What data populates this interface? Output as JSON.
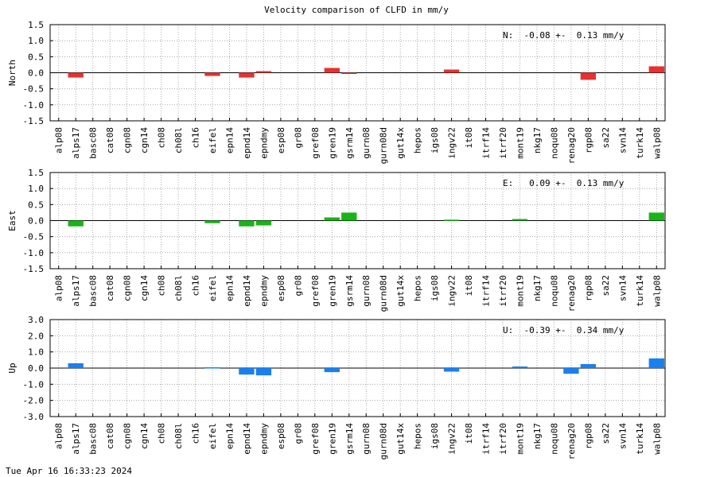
{
  "title": "Velocity comparison of CLFD in mm/y",
  "footer": "Tue Apr 16 16:33:23 2024",
  "chart_data": [
    {
      "type": "bar",
      "ylabel": "North",
      "annotation": "N:  -0.08 +-  0.13 mm/y",
      "color": "#e83030",
      "ylim": [
        -1.5,
        1.5
      ],
      "yticks": [
        1.5,
        1.0,
        0.5,
        0.0,
        -0.5,
        -1.0,
        -1.5
      ],
      "ytick_labels": [
        "1.5",
        "1.0",
        "0.5",
        "0.0",
        "-0.5",
        "-1.0",
        "-1.5"
      ],
      "grid": true,
      "categories": [
        "alp08",
        "alps17",
        "basc08",
        "cat08",
        "cgn08",
        "cgn14",
        "ch08",
        "ch08l",
        "ch16",
        "eifel",
        "epn14",
        "epnd14",
        "epndmy",
        "esp08",
        "gr08",
        "gref08",
        "gren19",
        "gsrm14",
        "gurn08",
        "gurn08d",
        "gut14x",
        "hepos",
        "igs08",
        "ingv22",
        "it08",
        "itrf14",
        "itrf20",
        "mont19",
        "nkg17",
        "noqu08",
        "renag20",
        "rgp08",
        "sa22",
        "svn14",
        "turk14",
        "walp08"
      ],
      "values": [
        0,
        -0.15,
        0,
        0,
        0,
        0,
        0,
        0,
        0,
        -0.1,
        0,
        -0.15,
        0.05,
        0,
        0,
        0,
        0.15,
        -0.03,
        0,
        0,
        0,
        0,
        0,
        0.1,
        0,
        0,
        0,
        0,
        0,
        0,
        0,
        -0.22,
        0,
        0,
        0,
        0.2
      ]
    },
    {
      "type": "bar",
      "ylabel": "East",
      "annotation": "E:   0.09 +-  0.13 mm/y",
      "color": "#18b418",
      "ylim": [
        -1.5,
        1.5
      ],
      "yticks": [
        1.5,
        1.0,
        0.5,
        0.0,
        -0.5,
        -1.0,
        -1.5
      ],
      "ytick_labels": [
        "1.5",
        "1.0",
        "0.5",
        "0.0",
        "-0.5",
        "-1.0",
        "-1.5"
      ],
      "grid": true,
      "categories": [
        "alp08",
        "alps17",
        "basc08",
        "cat08",
        "cgn08",
        "cgn14",
        "ch08",
        "ch08l",
        "ch16",
        "eifel",
        "epn14",
        "epnd14",
        "epndmy",
        "esp08",
        "gr08",
        "gref08",
        "gren19",
        "gsrm14",
        "gurn08",
        "gurn08d",
        "gut14x",
        "hepos",
        "igs08",
        "ingv22",
        "it08",
        "itrf14",
        "itrf20",
        "mont19",
        "nkg17",
        "noqu08",
        "renag20",
        "rgp08",
        "sa22",
        "svn14",
        "turk14",
        "walp08"
      ],
      "values": [
        0,
        -0.18,
        0,
        0,
        0,
        0,
        0,
        0,
        0,
        -0.08,
        0,
        -0.18,
        -0.15,
        0,
        0,
        0,
        0.1,
        0.25,
        0,
        0,
        0,
        0,
        0,
        0.03,
        0,
        0,
        0,
        0.05,
        0,
        0,
        0,
        0,
        0,
        0,
        0,
        0.25
      ]
    },
    {
      "type": "bar",
      "ylabel": "Up",
      "annotation": "U:  -0.39 +-  0.34 mm/y",
      "color": "#1880f0",
      "ylim": [
        -3.0,
        3.0
      ],
      "yticks": [
        3.0,
        2.0,
        1.0,
        0.0,
        -1.0,
        -2.0,
        -3.0
      ],
      "ytick_labels": [
        "3.0",
        "2.0",
        "1.0",
        "0.0",
        "-1.0",
        "-2.0",
        "-3.0"
      ],
      "grid": true,
      "categories": [
        "alp08",
        "alps17",
        "basc08",
        "cat08",
        "cgn08",
        "cgn14",
        "ch08",
        "ch08l",
        "ch16",
        "eifel",
        "epn14",
        "epnd14",
        "epndmy",
        "esp08",
        "gr08",
        "gref08",
        "gren19",
        "gsrm14",
        "gurn08",
        "gurn08d",
        "gut14x",
        "hepos",
        "igs08",
        "ingv22",
        "it08",
        "itrf14",
        "itrf20",
        "mont19",
        "nkg17",
        "noqu08",
        "renag20",
        "rgp08",
        "sa22",
        "svn14",
        "turk14",
        "walp08"
      ],
      "values": [
        0,
        0.3,
        0,
        0,
        0,
        0,
        0,
        0,
        0,
        0.05,
        0,
        -0.4,
        -0.45,
        0,
        0,
        0,
        -0.25,
        0,
        0,
        0,
        0,
        0,
        0,
        -0.22,
        0,
        0,
        0,
        0.1,
        0,
        0,
        -0.35,
        0.25,
        0,
        0,
        0,
        0.6
      ]
    }
  ]
}
